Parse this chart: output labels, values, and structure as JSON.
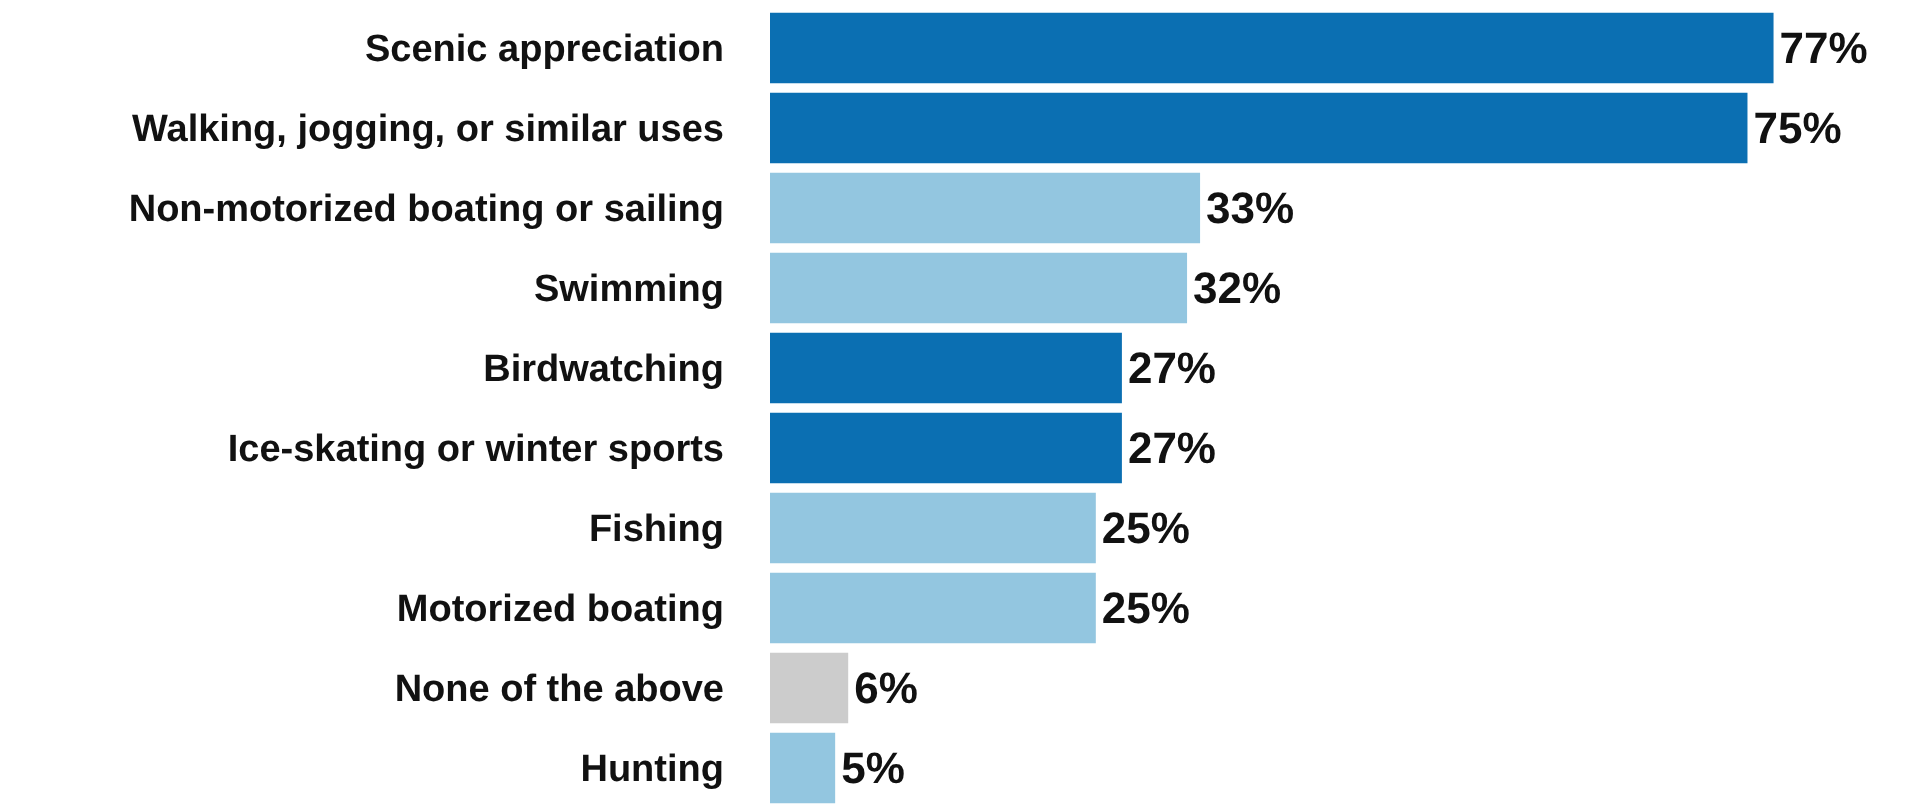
{
  "chart_data": {
    "type": "bar",
    "orientation": "horizontal",
    "tick_labels": "y",
    "categories": [
      "Scenic appreciation",
      "Walking, jogging, or similar uses",
      "Non-motorized boating or sailing",
      "Swimming",
      "Birdwatching",
      "Ice-skating or winter sports",
      "Fishing",
      "Motorized boating",
      "None of the above",
      "Hunting"
    ],
    "values": [
      77,
      75,
      33,
      32,
      27,
      27,
      25,
      25,
      6,
      5
    ],
    "value_labels": [
      "77%",
      "75%",
      "33%",
      "32%",
      "27%",
      "27%",
      "25%",
      "25%",
      "6%",
      "5%"
    ],
    "colors": [
      "#0b6fb2",
      "#0b6fb2",
      "#93c6e0",
      "#93c6e0",
      "#0b6fb2",
      "#0b6fb2",
      "#93c6e0",
      "#93c6e0",
      "#cccccc",
      "#93c6e0"
    ]
  }
}
